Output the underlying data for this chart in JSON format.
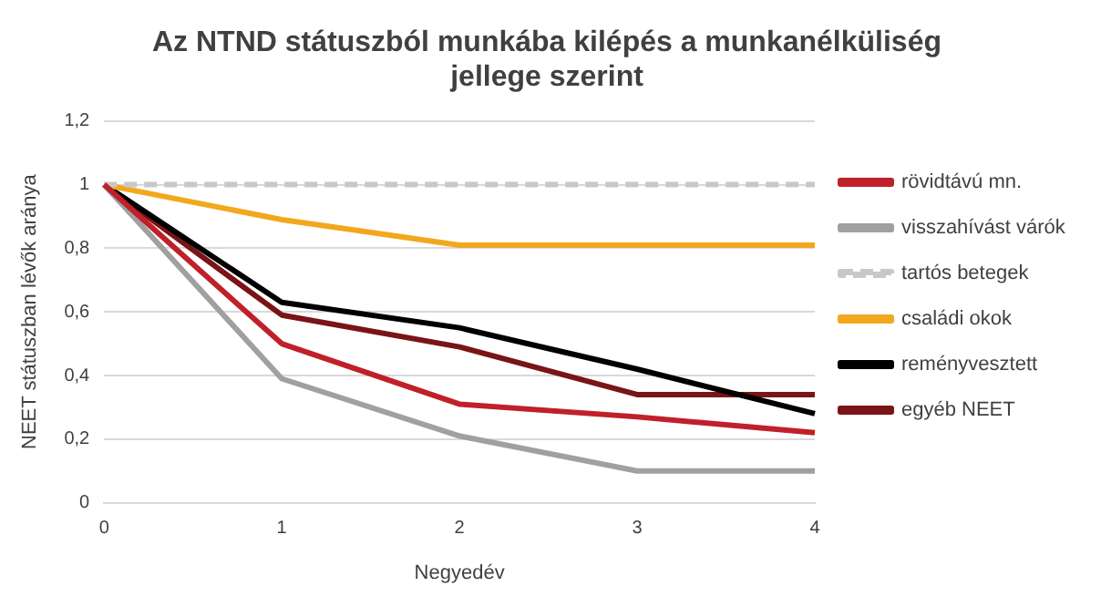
{
  "chart_data": {
    "type": "line",
    "title": [
      "Az NTND státuszból munkába kilépés a munkanélküliség",
      "jellege szerint"
    ],
    "xlabel": "Negyedév",
    "ylabel": "NEET státuszban lévők aránya",
    "categories": [
      "0",
      "1",
      "2",
      "3",
      "4"
    ],
    "series": [
      {
        "name": "rövidtávú mn.",
        "color": "#c0202a",
        "values": [
          1,
          0.5,
          0.31,
          0.27,
          0.22
        ]
      },
      {
        "name": "visszahívást várók",
        "color": "#a0a0a0",
        "values": [
          1,
          0.39,
          0.21,
          0.1,
          0.1
        ]
      },
      {
        "name": "tartós betegek",
        "color": "#c8c8c8",
        "line_style": "dashed",
        "values": [
          1,
          1,
          1,
          1,
          1
        ]
      },
      {
        "name": "családi okok",
        "color": "#f2a81d",
        "values": [
          1,
          0.89,
          0.81,
          0.81,
          0.81
        ]
      },
      {
        "name": "reményvesztett",
        "color": "#000000",
        "values": [
          1,
          0.63,
          0.55,
          0.42,
          0.28
        ]
      },
      {
        "name": "egyéb NEET",
        "color": "#7a1416",
        "values": [
          1,
          0.59,
          0.49,
          0.34,
          0.34
        ]
      }
    ],
    "ylim": [
      0,
      1.2
    ],
    "yticks": [
      {
        "value": 0,
        "label": "0"
      },
      {
        "value": 0.2,
        "label": "0,2"
      },
      {
        "value": 0.4,
        "label": "0,4"
      },
      {
        "value": 0.6,
        "label": "0,6"
      },
      {
        "value": 0.8,
        "label": "0,8"
      },
      {
        "value": 1,
        "label": "1"
      },
      {
        "value": 1.2,
        "label": "1,2"
      }
    ],
    "grid": "y",
    "legend": "right",
    "marker": "none",
    "line_style": "solid"
  }
}
